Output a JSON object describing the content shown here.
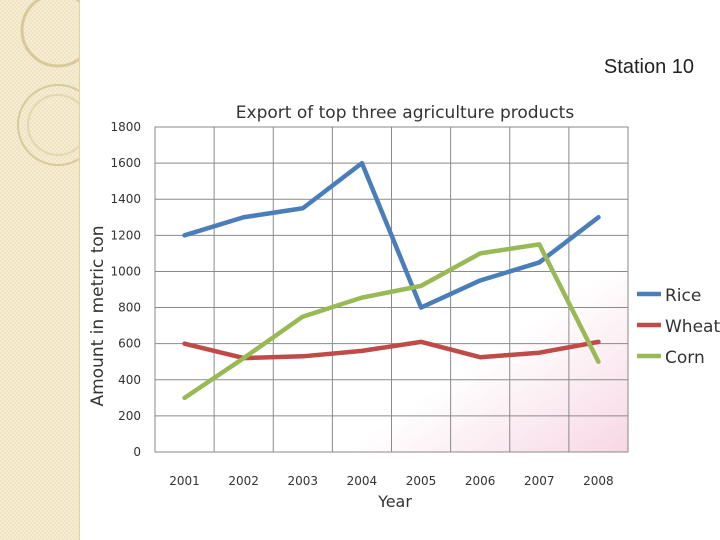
{
  "slide": {
    "label": "Station 10"
  },
  "chart_data": {
    "type": "line",
    "title": "Export of top three agriculture products",
    "xlabel": "Year",
    "ylabel": "Amount in metric ton",
    "categories": [
      "2001",
      "2002",
      "2003",
      "2004",
      "2005",
      "2006",
      "2007",
      "2008"
    ],
    "ylim": [
      0,
      1800
    ],
    "yticks": [
      0,
      200,
      400,
      600,
      800,
      1000,
      1200,
      1400,
      1600,
      1800
    ],
    "grid": true,
    "legend_position": "right",
    "series": [
      {
        "name": "Rice",
        "color": "#4a7ebb",
        "values": [
          1200,
          1300,
          1350,
          1600,
          800,
          950,
          1050,
          1300
        ]
      },
      {
        "name": "Wheat",
        "color": "#be4b48",
        "values": [
          600,
          520,
          530,
          560,
          610,
          525,
          550,
          610
        ]
      },
      {
        "name": "Corn",
        "color": "#98b954",
        "values": [
          300,
          520,
          750,
          855,
          920,
          1100,
          1150,
          500
        ]
      }
    ]
  }
}
